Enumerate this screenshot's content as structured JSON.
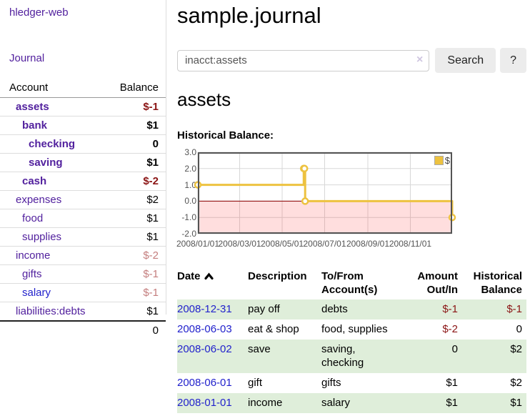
{
  "app": {
    "brand": "hledger-web",
    "nav_journal": "Journal"
  },
  "colors": {
    "link_purple": "#52219e",
    "link_blue": "#2222cc",
    "negative_dark": "#8b1515",
    "negative_light": "#c47e7e",
    "row_stripe_green": "#dfeeda",
    "chart_line_gold": "#edc240",
    "chart_zero_line": "#8b0000",
    "chart_negative_fill": "rgba(255,0,0,0.13)"
  },
  "sidebar": {
    "header": {
      "account": "Account",
      "balance": "Balance"
    },
    "accounts": [
      {
        "name": "assets",
        "level": 1,
        "bold": true,
        "balance": "$-1",
        "neg": "dark"
      },
      {
        "name": "bank",
        "level": 2,
        "bold": true,
        "balance": "$1"
      },
      {
        "name": "checking",
        "level": 3,
        "bold": true,
        "balance": "0"
      },
      {
        "name": "saving",
        "level": 3,
        "bold": true,
        "balance": "$1"
      },
      {
        "name": "cash",
        "level": 2,
        "bold": true,
        "balance": "$-2",
        "neg": "dark"
      },
      {
        "name": "expenses",
        "level": 1,
        "bold": false,
        "balance": "$2"
      },
      {
        "name": "food",
        "level": 2,
        "bold": false,
        "balance": "$1"
      },
      {
        "name": "supplies",
        "level": 2,
        "bold": false,
        "balance": "$1"
      },
      {
        "name": "income",
        "level": 1,
        "bold": false,
        "balance": "$-2",
        "neg": "light"
      },
      {
        "name": "gifts",
        "level": 2,
        "bold": false,
        "balance": "$-1",
        "neg": "light"
      },
      {
        "name": "salary",
        "level": 2,
        "bold": false,
        "balance": "$-1",
        "neg": "light",
        "link": "blue"
      },
      {
        "name": "liabilities:debts",
        "level": 1,
        "bold": false,
        "balance": "$1"
      }
    ],
    "total": "0"
  },
  "header": {
    "title": "sample.journal"
  },
  "search": {
    "value": "inacct:assets",
    "clear_icon": "×",
    "button_label": "Search",
    "help_label": "?"
  },
  "account_page": {
    "heading": "assets",
    "chart_label": "Historical Balance:"
  },
  "chart_data": {
    "type": "line",
    "style": "step",
    "title": "Historical Balance",
    "legend": "$",
    "legend_position": "top-right",
    "grid": true,
    "x_range": [
      "2008-01-01",
      "2008-12-31"
    ],
    "y_range": [
      -2,
      3
    ],
    "y_ticks": [
      "3.0",
      "2.0",
      "1.0",
      "0.0",
      "-1.0",
      "-2.0"
    ],
    "x_ticks": [
      {
        "date": "2008-01-01",
        "label": "2008/01/01"
      },
      {
        "date": "2008-03-01",
        "label": "2008/03/01"
      },
      {
        "date": "2008-05-01",
        "label": "2008/05/01"
      },
      {
        "date": "2008-07-01",
        "label": "2008/07/01"
      },
      {
        "date": "2008-09-01",
        "label": "2008/09/01"
      },
      {
        "date": "2008-11-01",
        "label": "2008/11/01"
      }
    ],
    "series": [
      {
        "name": "$",
        "color": "#edc240",
        "points": [
          [
            "2008-01-01",
            1
          ],
          [
            "2008-06-01",
            2
          ],
          [
            "2008-06-02",
            2
          ],
          [
            "2008-06-03",
            0
          ],
          [
            "2008-12-31",
            -1
          ]
        ]
      }
    ]
  },
  "register": {
    "columns": [
      {
        "label": "Date",
        "sort": "asc",
        "align": "left"
      },
      {
        "label": "Description",
        "align": "left"
      },
      {
        "label": "To/From\nAccount(s)",
        "align": "left"
      },
      {
        "label": "Amount\nOut/In",
        "align": "right"
      },
      {
        "label": "Historical\nBalance",
        "align": "right"
      }
    ],
    "rows": [
      {
        "date": "2008-12-31",
        "description": "pay off",
        "accounts": "debts",
        "amount": "$-1",
        "amount_neg": true,
        "balance": "$-1",
        "balance_neg": true
      },
      {
        "date": "2008-06-03",
        "description": "eat & shop",
        "accounts": "food, supplies",
        "amount": "$-2",
        "amount_neg": true,
        "balance": "0",
        "balance_neg": false
      },
      {
        "date": "2008-06-02",
        "description": "save",
        "accounts": "saving,\nchecking",
        "amount": "0",
        "amount_neg": false,
        "balance": "$2",
        "balance_neg": false
      },
      {
        "date": "2008-06-01",
        "description": "gift",
        "accounts": "gifts",
        "amount": "$1",
        "amount_neg": false,
        "balance": "$2",
        "balance_neg": false
      },
      {
        "date": "2008-01-01",
        "description": "income",
        "accounts": "salary",
        "amount": "$1",
        "amount_neg": false,
        "balance": "$1",
        "balance_neg": false
      }
    ]
  }
}
